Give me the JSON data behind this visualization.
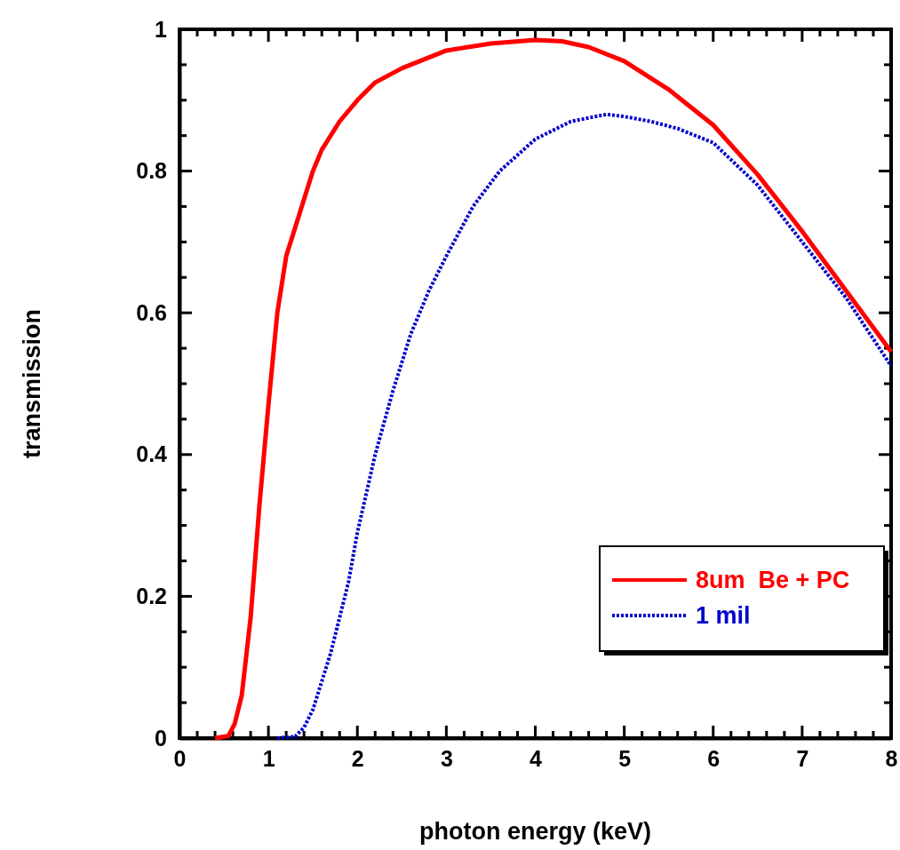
{
  "chart_data": {
    "type": "line",
    "xlabel": "photon energy (keV)",
    "ylabel": "transmission",
    "xlim": [
      0,
      8
    ],
    "ylim": [
      0,
      1
    ],
    "xticks": [
      0,
      {
        "value": 0.2,
        "label": null
      },
      {
        "value": 0.4,
        "label": null
      },
      {
        "value": 0.6,
        "label": null
      },
      {
        "value": 0.8,
        "label": null
      },
      1,
      {
        "value": 1.2,
        "label": null
      },
      {
        "value": 1.4,
        "label": null
      },
      {
        "value": 1.6,
        "label": null
      },
      {
        "value": 1.8,
        "label": null
      },
      2,
      {
        "value": 2.2,
        "label": null
      },
      {
        "value": 2.4,
        "label": null
      },
      {
        "value": 2.6,
        "label": null
      },
      {
        "value": 2.8,
        "label": null
      },
      3,
      {
        "value": 3.2,
        "label": null
      },
      {
        "value": 3.4,
        "label": null
      },
      {
        "value": 3.6,
        "label": null
      },
      {
        "value": 3.8,
        "label": null
      },
      4,
      {
        "value": 4.2,
        "label": null
      },
      {
        "value": 4.4,
        "label": null
      },
      {
        "value": 4.6,
        "label": null
      },
      {
        "value": 4.8,
        "label": null
      },
      5,
      {
        "value": 5.2,
        "label": null
      },
      {
        "value": 5.4,
        "label": null
      },
      {
        "value": 5.6,
        "label": null
      },
      {
        "value": 5.8,
        "label": null
      },
      6,
      {
        "value": 6.2,
        "label": null
      },
      {
        "value": 6.4,
        "label": null
      },
      {
        "value": 6.6,
        "label": null
      },
      {
        "value": 6.8,
        "label": null
      },
      7,
      {
        "value": 7.2,
        "label": null
      },
      {
        "value": 7.4,
        "label": null
      },
      {
        "value": 7.6,
        "label": null
      },
      {
        "value": 7.8,
        "label": null
      },
      8
    ],
    "yticks": [
      0,
      {
        "value": 0.05,
        "label": null
      },
      {
        "value": 0.1,
        "label": null
      },
      {
        "value": 0.15,
        "label": null
      },
      0.2,
      {
        "value": 0.25,
        "label": null
      },
      {
        "value": 0.3,
        "label": null
      },
      {
        "value": 0.35,
        "label": null
      },
      0.4,
      {
        "value": 0.45,
        "label": null
      },
      {
        "value": 0.5,
        "label": null
      },
      {
        "value": 0.55,
        "label": null
      },
      0.6,
      {
        "value": 0.65,
        "label": null
      },
      {
        "value": 0.7,
        "label": null
      },
      {
        "value": 0.75,
        "label": null
      },
      0.8,
      {
        "value": 0.85,
        "label": null
      },
      {
        "value": 0.9,
        "label": null
      },
      {
        "value": 0.95,
        "label": null
      },
      1
    ],
    "grid": false,
    "legend": "bottom right",
    "marker": "none",
    "series": [
      {
        "name": "8um  Be + PC",
        "color": "#ff0000",
        "line_style": "solid",
        "x": [
          0.4,
          0.55,
          0.62,
          0.7,
          0.8,
          0.9,
          1.0,
          1.1,
          1.2,
          1.35,
          1.5,
          1.6,
          1.8,
          2.0,
          2.2,
          2.5,
          3.0,
          3.5,
          4.0,
          4.3,
          4.6,
          5.0,
          5.5,
          6.0,
          6.5,
          7.0,
          7.5,
          8.0
        ],
        "values": [
          0,
          0.003,
          0.02,
          0.06,
          0.17,
          0.33,
          0.47,
          0.6,
          0.68,
          0.74,
          0.8,
          0.83,
          0.87,
          0.9,
          0.925,
          0.945,
          0.97,
          0.98,
          0.985,
          0.983,
          0.975,
          0.955,
          0.915,
          0.865,
          0.795,
          0.715,
          0.63,
          0.545
        ]
      },
      {
        "name": "1 mil",
        "color": "#0000cc",
        "line_style": "dotted",
        "x": [
          1.1,
          1.3,
          1.4,
          1.5,
          1.7,
          1.9,
          2.0,
          2.2,
          2.4,
          2.6,
          2.8,
          3.0,
          3.3,
          3.6,
          4.0,
          4.4,
          4.8,
          5.0,
          5.3,
          5.6,
          6.0,
          6.5,
          7.0,
          7.5,
          8.0
        ],
        "values": [
          0,
          0.002,
          0.015,
          0.04,
          0.12,
          0.22,
          0.29,
          0.4,
          0.49,
          0.57,
          0.63,
          0.68,
          0.75,
          0.8,
          0.845,
          0.87,
          0.88,
          0.877,
          0.87,
          0.86,
          0.84,
          0.78,
          0.7,
          0.62,
          0.525
        ]
      }
    ]
  }
}
